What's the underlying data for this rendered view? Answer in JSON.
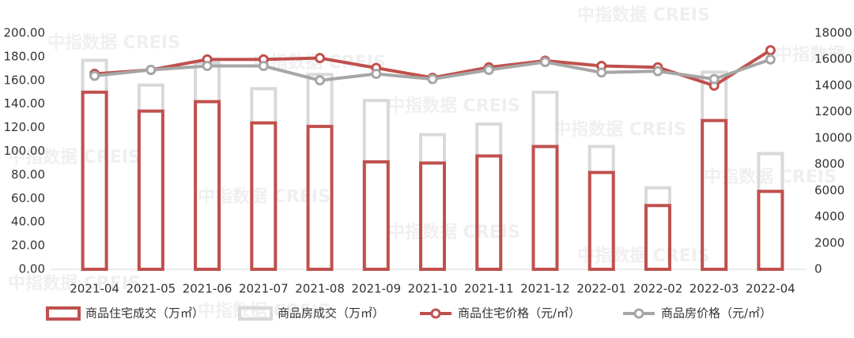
{
  "chart_data": {
    "type": "bar-line",
    "watermark": "中指数据 CREIS",
    "categories": [
      "2021-04",
      "2021-05",
      "2021-06",
      "2021-07",
      "2021-08",
      "2021-09",
      "2021-10",
      "2021-11",
      "2021-12",
      "2022-01",
      "2022-02",
      "2022-03",
      "2022-04"
    ],
    "ylim": [
      0,
      200
    ],
    "yticks": [
      {
        "value": 0,
        "label": "0.00"
      },
      {
        "value": 20,
        "label": "20.00"
      },
      {
        "value": 40,
        "label": "40.00"
      },
      {
        "value": 60,
        "label": "60.00"
      },
      {
        "value": 80,
        "label": "80.00"
      },
      {
        "value": 100,
        "label": "100.00"
      },
      {
        "value": 120,
        "label": "120.00"
      },
      {
        "value": 140,
        "label": "140.00"
      },
      {
        "value": 160,
        "label": "160.00"
      },
      {
        "value": 180,
        "label": "180.00"
      },
      {
        "value": 200,
        "label": "200.00"
      }
    ],
    "y2lim": [
      0,
      18000
    ],
    "y2ticks": [
      0,
      2000,
      4000,
      6000,
      8000,
      10000,
      12000,
      14000,
      16000,
      18000
    ],
    "legend": "bottom",
    "series": [
      {
        "name": "商品房成交（万㎡）",
        "type": "bar",
        "color": "#d9d9d9",
        "values": [
          177,
          156,
          175,
          153,
          165,
          143,
          114,
          123,
          150,
          104,
          69,
          167,
          98
        ]
      },
      {
        "name": "商品住宅成交（万㎡）",
        "type": "bar",
        "color": "#c0504d",
        "values": [
          150,
          134,
          142,
          124,
          121,
          91,
          90,
          96,
          104,
          82,
          54,
          126,
          66
        ]
      },
      {
        "name": "商品住宅价格（元/㎡）",
        "type": "line",
        "axis": "y2",
        "color": "#c0504d",
        "values": [
          14900,
          15200,
          16000,
          16000,
          16100,
          15350,
          14600,
          15400,
          15900,
          15500,
          15400,
          14000,
          16700
        ]
      },
      {
        "name": "商品房价格（元/㎡）",
        "type": "line",
        "axis": "y2",
        "color": "#a6a6a6",
        "values": [
          14750,
          15200,
          15500,
          15500,
          14400,
          14900,
          14500,
          15200,
          15800,
          15000,
          15100,
          14500,
          16000
        ]
      }
    ]
  }
}
